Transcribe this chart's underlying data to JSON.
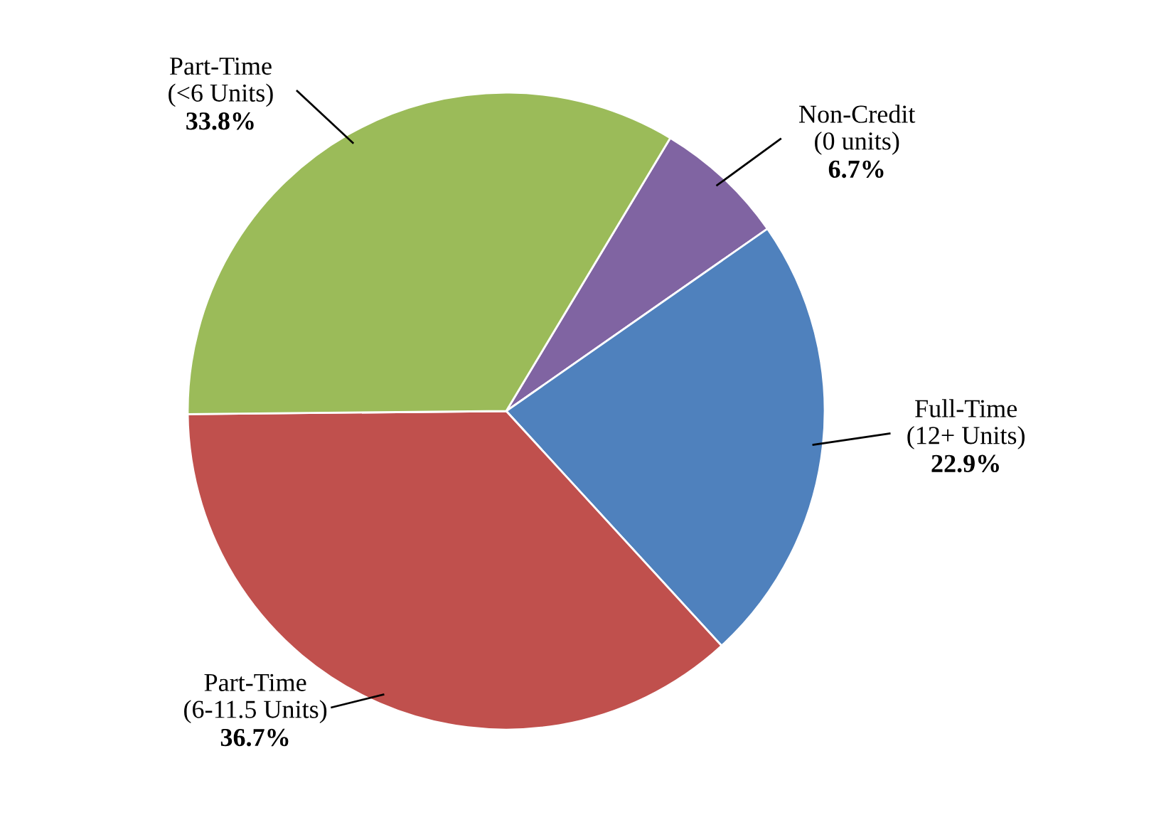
{
  "chart_data": {
    "type": "pie",
    "categories": [
      "Non-Credit\n(0 units)",
      "Full-Time\n(12+ Units)",
      "Part-Time\n(6-11.5 Units)",
      "Part-Time\n(<6 Units)"
    ],
    "values": [
      6.7,
      22.9,
      36.7,
      33.8
    ],
    "value_labels": [
      "6.7%",
      "22.9%",
      "36.7%",
      "33.8%"
    ],
    "colors": [
      "#8064a2",
      "#4f81bd",
      "#c0504d",
      "#9bbb59"
    ],
    "legend": false
  }
}
